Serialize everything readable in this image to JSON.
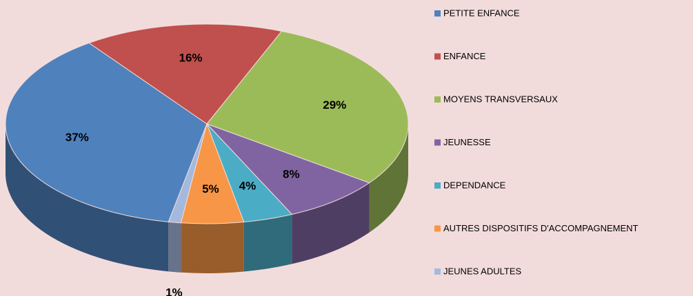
{
  "chart_data": {
    "type": "pie",
    "categories": [
      "PETITE ENFANCE",
      "ENFANCE",
      "MOYENS TRANSVERSAUX",
      "JEUNESSE",
      "DEPENDANCE",
      "AUTRES DISPOSITIFS D'ACCOMPAGNEMENT",
      "JEUNES ADULTES"
    ],
    "values": [
      37,
      16,
      29,
      8,
      4,
      5,
      1
    ],
    "value_labels": [
      "37%",
      "16%",
      "29%",
      "8%",
      "4%",
      "5%",
      "1%"
    ],
    "colors": [
      "#4f81bd",
      "#c0504d",
      "#9bbb59",
      "#8064a2",
      "#4bacc6",
      "#f79646",
      "#a5b9de"
    ],
    "three_d": true
  }
}
